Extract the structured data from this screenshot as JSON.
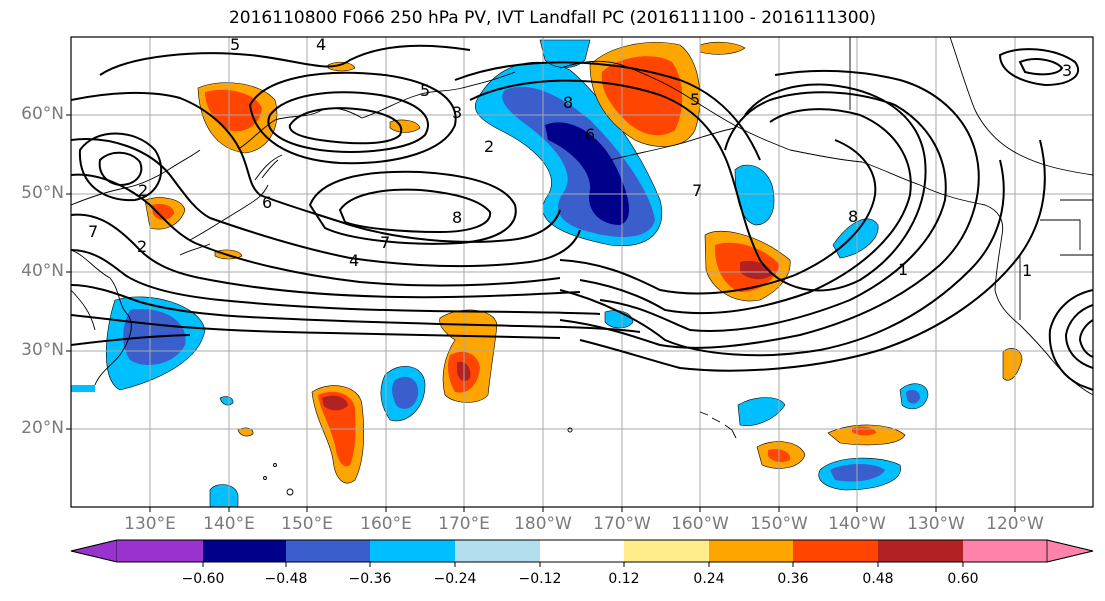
{
  "title": "2016110800 F066 250 hPa PV, IVT Landfall PC (2016111100 - 2016111300)",
  "lat_labels": [
    "60°N",
    "50°N",
    "40°N",
    "30°N",
    "20°N"
  ],
  "lon_labels": [
    "130°E",
    "140°E",
    "150°E",
    "160°E",
    "170°E",
    "180°W",
    "170°W",
    "160°W",
    "150°W",
    "140°W",
    "130°W",
    "120°W"
  ],
  "pv_contour_labels": [
    "5",
    "4",
    "5",
    "3",
    "2",
    "8",
    "6",
    "2",
    "6",
    "7",
    "2",
    "7",
    "8",
    "7",
    "4",
    "8",
    "1",
    "1",
    "3",
    "5"
  ],
  "colorbar": {
    "ticks": [
      "−0.60",
      "−0.48",
      "−0.36",
      "−0.24",
      "−0.12",
      "0.12",
      "0.24",
      "0.36",
      "0.48",
      "0.60"
    ],
    "colors": [
      "#9a32cd",
      "#00008b",
      "#3a5fcd",
      "#00bfff",
      "#b2dfee",
      "#ffffff",
      "#ffec8b",
      "#ffa500",
      "#ff4500",
      "#b22222",
      "#ff82ab"
    ]
  },
  "colors": {
    "land_outline": "#000000",
    "grid": "#a8a8a8",
    "contour": "#000000",
    "tick_label": "#7a7a7a"
  }
}
